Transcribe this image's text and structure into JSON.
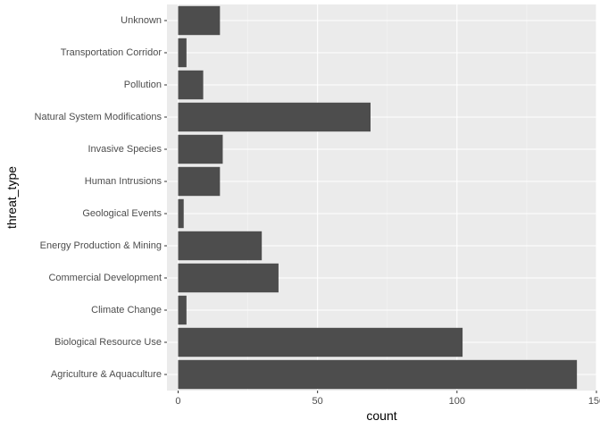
{
  "chart_data": {
    "type": "bar",
    "orientation": "horizontal",
    "xlabel": "count",
    "ylabel": "threat_type",
    "xlim": [
      -4,
      150
    ],
    "x_ticks": [
      0,
      50,
      100,
      150
    ],
    "grid": true,
    "legend": "none",
    "categories": [
      "Agriculture & Aquaculture",
      "Biological Resource Use",
      "Climate Change",
      "Commercial Development",
      "Energy Production & Mining",
      "Geological Events",
      "Human Intrusions",
      "Invasive Species",
      "Natural System Modifications",
      "Pollution",
      "Transportation Corridor",
      "Unknown"
    ],
    "values": [
      143,
      102,
      3,
      36,
      30,
      2,
      15,
      16,
      69,
      9,
      3,
      15
    ],
    "colors": {
      "bar": "#4d4d4d",
      "panel": "#ebebeb",
      "grid_major": "#ffffff",
      "grid_minor": "#f5f5f5",
      "tick_text": "#4d4d4d",
      "tick_mark": "#333333"
    }
  }
}
